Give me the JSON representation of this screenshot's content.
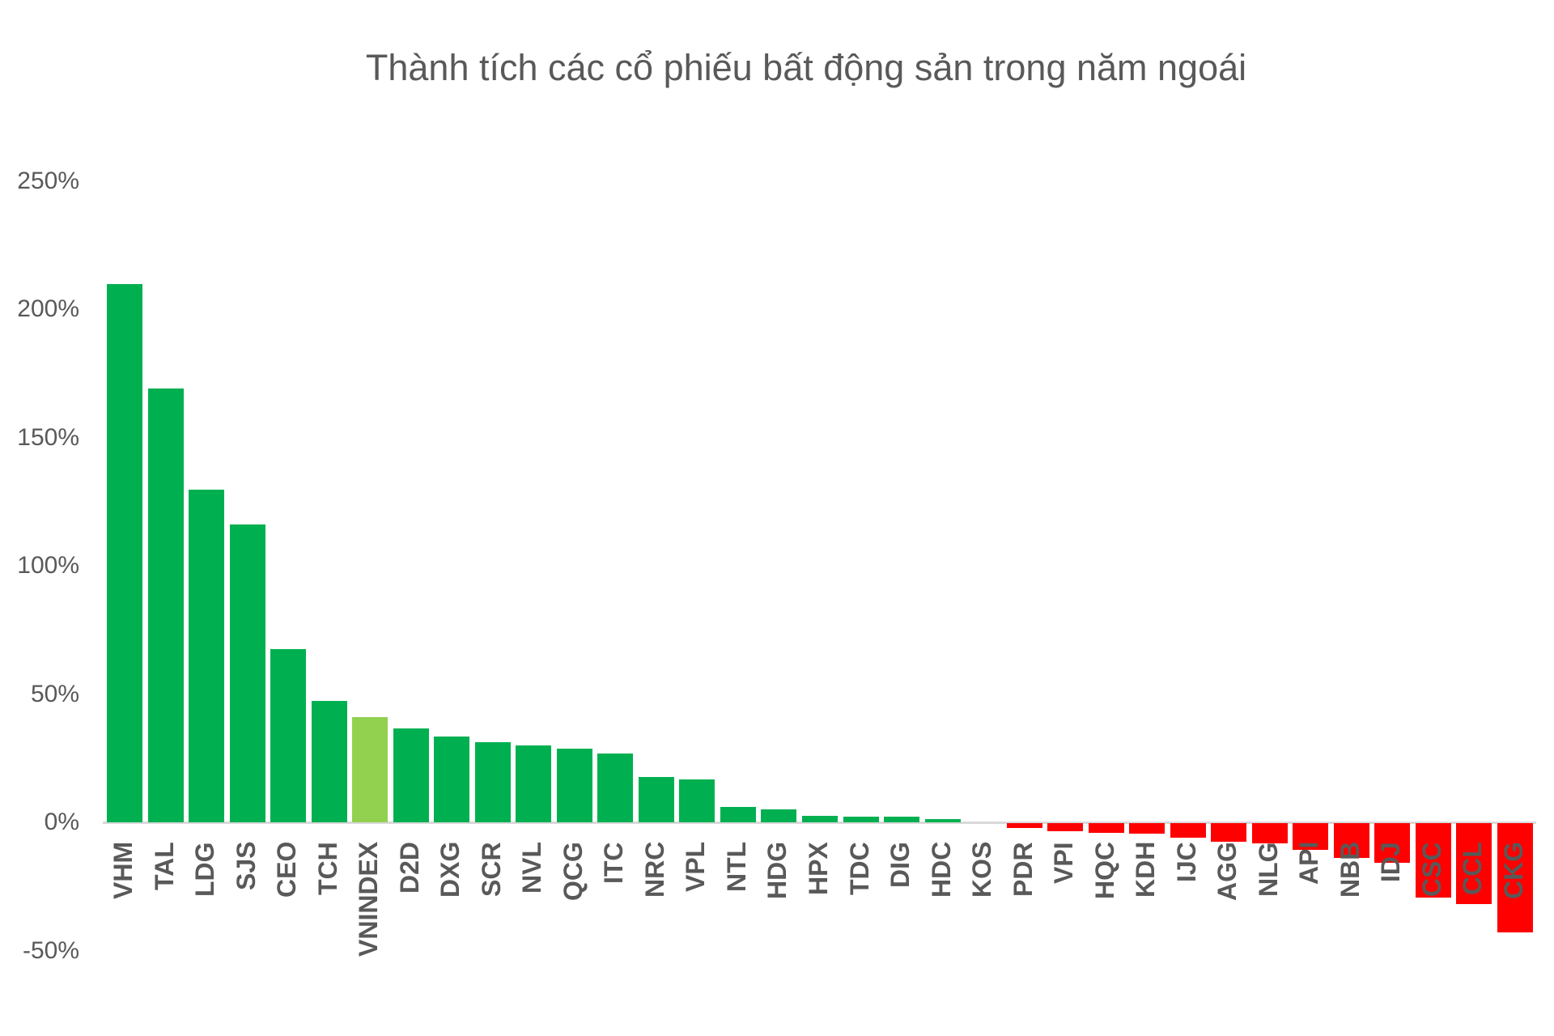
{
  "chart_data": {
    "type": "bar",
    "title": "Thành tích các cổ phiếu bất động sản trong năm ngoái",
    "xlabel": "",
    "ylabel": "",
    "ylim": [
      -50,
      250
    ],
    "yticks": [
      250,
      200,
      150,
      100,
      50,
      0,
      -50
    ],
    "ytick_labels": [
      "250%",
      "200%",
      "150%",
      "100%",
      "50%",
      "0%",
      "-50%"
    ],
    "grid": false,
    "legend": null,
    "colors": {
      "positive": "#00B050",
      "index": "#92D050",
      "negative": "#FF0000",
      "axis": "#D9D9D9",
      "text": "#595959"
    },
    "categories": [
      "VHM",
      "TAL",
      "LDG",
      "SJS",
      "CEO",
      "TCH",
      "VNINDEX",
      "D2D",
      "DXG",
      "SCR",
      "NVL",
      "QCG",
      "ITC",
      "NRC",
      "VPL",
      "NTL",
      "HDG",
      "HPX",
      "TDC",
      "DIG",
      "HDC",
      "KOS",
      "PDR",
      "VPI",
      "HQC",
      "KDH",
      "IJC",
      "AGG",
      "NLG",
      "API",
      "NBB",
      "IDJ",
      "CSC",
      "CCL",
      "CKG"
    ],
    "values": [
      209.8,
      169.1,
      129.7,
      116.1,
      67.5,
      47.3,
      41.0,
      36.6,
      33.4,
      31.2,
      30.0,
      28.7,
      26.8,
      17.7,
      16.7,
      5.9,
      5.1,
      2.5,
      2.2,
      2.1,
      1.3,
      0.0,
      -2.0,
      -3.1,
      -3.8,
      -4.1,
      -5.7,
      -7.3,
      -7.9,
      -10.3,
      -13.6,
      -15.3,
      -29.0,
      -31.5,
      -42.5
    ],
    "highlight_category": "VNINDEX",
    "unit": "%"
  }
}
